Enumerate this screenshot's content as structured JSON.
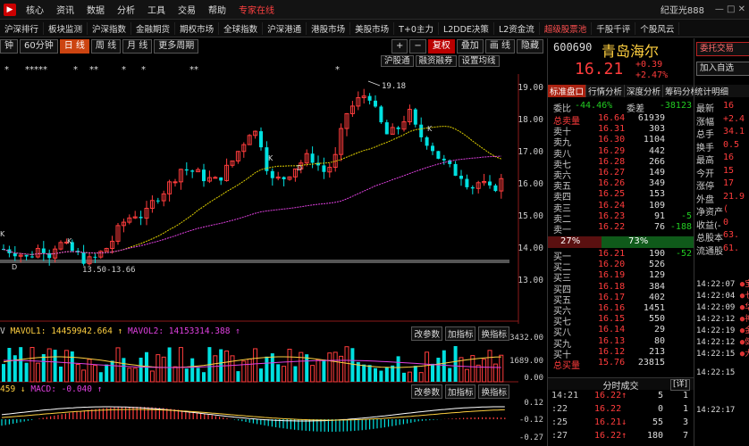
{
  "menubar": {
    "items": [
      "核心",
      "资讯",
      "数据",
      "分析",
      "工具",
      "交易",
      "帮助"
    ],
    "expert_online": "专家在线",
    "user": "纪亚光888",
    "win_controls": "— □ ✕"
  },
  "navbar": {
    "items": [
      "沪深排行",
      "板块监测",
      "沪深指数",
      "金融期货",
      "期权市场",
      "全球指数",
      "沪深港通",
      "港股市场",
      "美股市场",
      "T+0主力",
      "L2DDE决策",
      "L2资金流",
      "超级股票池",
      "千股千评",
      "个股风云"
    ]
  },
  "periodbar": {
    "items": [
      "钟",
      "60分钟",
      "日 线",
      "周 线",
      "月 线",
      "更多周期"
    ],
    "active_index": 2,
    "right": [
      "+",
      "−",
      "复权",
      "叠加",
      "画 线",
      "隐藏"
    ]
  },
  "subtoolbar": [
    "沪股通",
    "融资融券",
    "设置均线"
  ],
  "stars": [
    "*",
    "*****",
    "*",
    "**",
    "*",
    "*",
    "**",
    "*"
  ],
  "kchart": {
    "yticks": [
      "19.00",
      "18.00",
      "17.00",
      "16.00",
      "15.00",
      "14.00",
      "13.00"
    ],
    "high_label": "19.18",
    "range_label": "13.50-13.66",
    "k_marks": [
      "K",
      "K",
      "K",
      "K",
      "D",
      "D"
    ]
  },
  "volume": {
    "header": "V MAVOL1: 14459942.664 ↑ MAVOL2: 14153314.388 ↑",
    "yticks": [
      "3432.00",
      "1689.00",
      "0.00"
    ],
    "buttons": [
      "改参数",
      "加指标",
      "换指标"
    ]
  },
  "macd": {
    "header": "459 ↓ MACD: -0.040 ↑",
    "yticks": [
      "0.12",
      "-0.12",
      "-0.27"
    ],
    "buttons": [
      "改参数",
      "加指标",
      "换指标"
    ]
  },
  "quote": {
    "code": "600690",
    "name": "青岛海尔",
    "price": "16.21",
    "change": "+0.39",
    "change_pct": "+2.47%",
    "tabs": [
      "标准盘口",
      "行情分析",
      "深度分析",
      "筹码分析",
      "统计明细"
    ],
    "weibi_label": "委比",
    "weibi": "-44.46%",
    "weicha_label": "委差",
    "weicha": "-38123",
    "total_sell_label": "总卖量",
    "total_sell_price": "16.64",
    "total_sell_vol": "61939",
    "asks": [
      {
        "label": "卖十",
        "price": "16.31",
        "vol": "303",
        "delta": ""
      },
      {
        "label": "卖九",
        "price": "16.30",
        "vol": "1104",
        "delta": ""
      },
      {
        "label": "卖八",
        "price": "16.29",
        "vol": "442",
        "delta": ""
      },
      {
        "label": "卖七",
        "price": "16.28",
        "vol": "266",
        "delta": ""
      },
      {
        "label": "卖六",
        "price": "16.27",
        "vol": "149",
        "delta": ""
      },
      {
        "label": "卖五",
        "price": "16.26",
        "vol": "349",
        "delta": ""
      },
      {
        "label": "卖四",
        "price": "16.25",
        "vol": "153",
        "delta": ""
      },
      {
        "label": "卖三",
        "price": "16.24",
        "vol": "109",
        "delta": ""
      },
      {
        "label": "卖二",
        "price": "16.23",
        "vol": "91",
        "delta": "-5"
      },
      {
        "label": "卖一",
        "price": "16.22",
        "vol": "76",
        "delta": "-188"
      }
    ],
    "ratio_left": "27%",
    "ratio_left_value": 0.27,
    "ratio_right": "73%",
    "bids": [
      {
        "label": "买一",
        "price": "16.21",
        "vol": "190",
        "delta": "-52"
      },
      {
        "label": "买二",
        "price": "16.20",
        "vol": "526",
        "delta": ""
      },
      {
        "label": "买三",
        "price": "16.19",
        "vol": "129",
        "delta": ""
      },
      {
        "label": "买四",
        "price": "16.18",
        "vol": "384",
        "delta": ""
      },
      {
        "label": "买五",
        "price": "16.17",
        "vol": "402",
        "delta": ""
      },
      {
        "label": "买六",
        "price": "16.16",
        "vol": "1451",
        "delta": ""
      },
      {
        "label": "买七",
        "price": "16.15",
        "vol": "550",
        "delta": ""
      },
      {
        "label": "买八",
        "price": "16.14",
        "vol": "29",
        "delta": ""
      },
      {
        "label": "买九",
        "price": "16.13",
        "vol": "80",
        "delta": ""
      },
      {
        "label": "买十",
        "price": "16.12",
        "vol": "213",
        "delta": ""
      }
    ],
    "total_buy_label": "总买量",
    "total_buy_price": "15.76",
    "total_buy_vol": "23815",
    "ticks_title": "分时成交",
    "ticks_btn": "[详]",
    "ticks": [
      {
        "time": "14:21",
        "price": "16.22↑",
        "vol": "5",
        "num": "1"
      },
      {
        "time": ":22",
        "price": "16.22",
        "vol": "0",
        "num": "1"
      },
      {
        "time": ":25",
        "price": "16.21↓",
        "vol": "55",
        "num": "3"
      },
      {
        "time": ":27",
        "price": "16.22↑",
        "vol": "180",
        "num": "7"
      }
    ]
  },
  "side": {
    "btn1": "委托交易",
    "btn2": "加入自选",
    "tabs": "统计明细",
    "rows": [
      {
        "k": "最新",
        "v": "16"
      },
      {
        "k": "涨幅",
        "v": "+2.4"
      },
      {
        "k": "总手",
        "v": "34.1"
      },
      {
        "k": "换手",
        "v": "0.5"
      },
      {
        "k": "最高",
        "v": "16"
      },
      {
        "k": "今开",
        "v": "15"
      },
      {
        "k": "涨停",
        "v": "17"
      },
      {
        "k": "外盘",
        "v": "21.9"
      },
      {
        "k": "净资产",
        "v": "("
      },
      {
        "k": "收益(-",
        "v": "0"
      },
      {
        "k": "总股本",
        "v": "63."
      },
      {
        "k": "流通股",
        "v": "61."
      }
    ],
    "news": [
      {
        "t": "14:22:07",
        "n": "宝"
      },
      {
        "t": "14:22:04",
        "n": "七"
      },
      {
        "t": "14:22:09",
        "n": "华"
      },
      {
        "t": "14:22:12",
        "n": "神"
      },
      {
        "t": "14:22:19",
        "n": "金"
      },
      {
        "t": "14:22:12",
        "n": "健"
      },
      {
        "t": "14:22:15",
        "n": "大"
      }
    ],
    "bottom_times": [
      "14:22:15",
      "14:22:17"
    ]
  }
}
